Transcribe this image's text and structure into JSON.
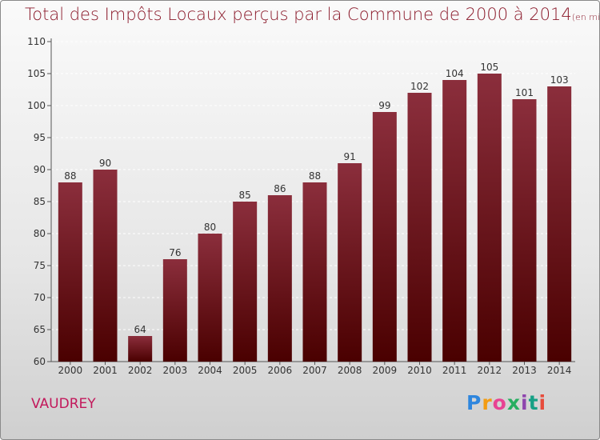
{
  "title": "Total des Impôts Locaux perçus par la Commune de 2000 à 2014",
  "subtitle": "(en milliers d'€)",
  "commune": "VAUDREY",
  "logo": [
    "P",
    "r",
    "o",
    "x",
    "i",
    "t",
    "i"
  ],
  "colors": {
    "bar_top": "#8b2e3c",
    "bar_bottom": "#4a0000",
    "title": "#8b1a2b"
  },
  "chart_data": {
    "type": "bar",
    "title": "Total des Impôts Locaux perçus par la Commune de 2000 à 2014",
    "subtitle": "(en milliers d'€)",
    "categories": [
      "2000",
      "2001",
      "2002",
      "2003",
      "2004",
      "2005",
      "2006",
      "2007",
      "2008",
      "2009",
      "2010",
      "2011",
      "2012",
      "2013",
      "2014"
    ],
    "values": [
      88,
      90,
      64,
      76,
      80,
      85,
      86,
      88,
      91,
      99,
      102,
      104,
      105,
      101,
      103
    ],
    "ylim": [
      60,
      110
    ],
    "yticks": [
      60,
      65,
      70,
      75,
      80,
      85,
      90,
      95,
      100,
      105,
      110
    ],
    "grid": true,
    "xlabel": "",
    "ylabel": ""
  }
}
